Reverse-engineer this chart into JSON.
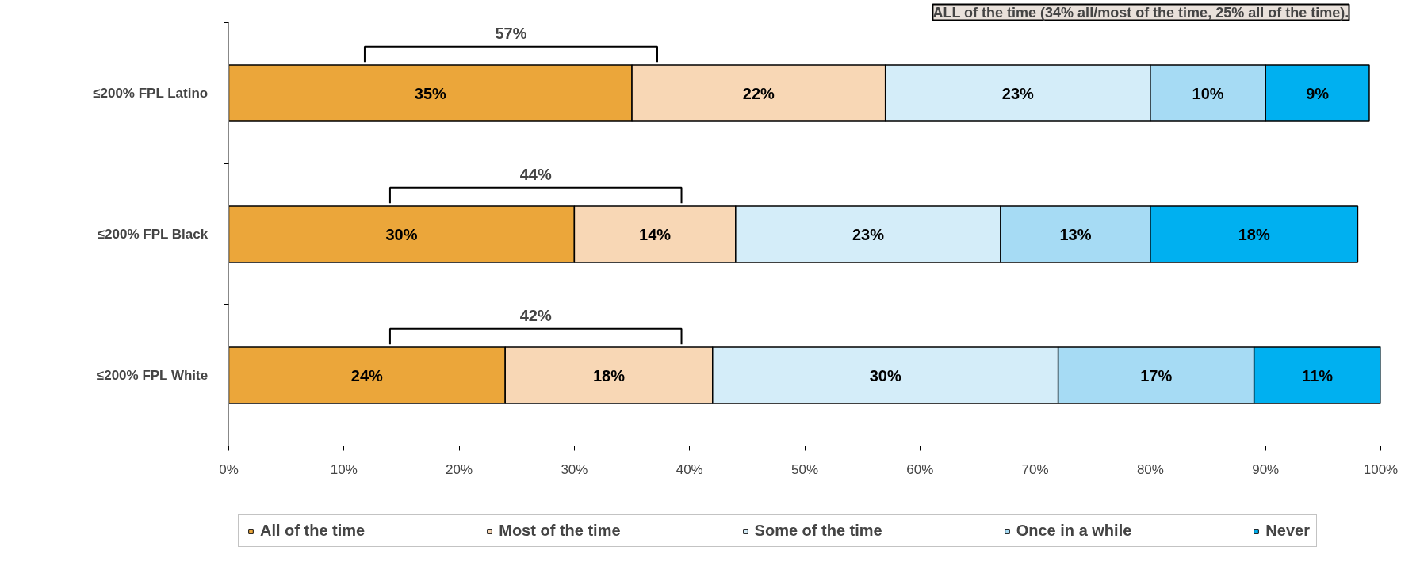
{
  "chart_data": {
    "type": "bar",
    "orientation": "horizontal",
    "stacked": true,
    "categories": [
      "≤200% FPL Latino",
      "≤200% FPL Black",
      "≤200% FPL White"
    ],
    "series": [
      {
        "name": "All of the time",
        "color": "#eba63a",
        "values": [
          35,
          30,
          24
        ],
        "value_labels": [
          "35%",
          "30%",
          "24%"
        ]
      },
      {
        "name": "Most of the time",
        "color": "#f8d7b5",
        "values": [
          22,
          14,
          18
        ],
        "value_labels": [
          "22%",
          "14%",
          "18%"
        ]
      },
      {
        "name": "Some of the time",
        "color": "#d4edf9",
        "values": [
          23,
          23,
          30
        ],
        "value_labels": [
          "23%",
          "23%",
          "30%"
        ]
      },
      {
        "name": "Once in a while",
        "color": "#a6dbf4",
        "values": [
          10,
          13,
          17
        ],
        "value_labels": [
          "10%",
          "13%",
          "17%"
        ]
      },
      {
        "name": "Never",
        "color": "#00b0f0",
        "values": [
          9,
          18,
          11
        ],
        "value_labels": [
          "9%",
          "18%",
          "11%"
        ]
      }
    ],
    "xlim": [
      0,
      100
    ],
    "xticks": [
      {
        "value": 0,
        "label": "0%"
      },
      {
        "value": 10,
        "label": "10%"
      },
      {
        "value": 20,
        "label": "20%"
      },
      {
        "value": 30,
        "label": "30%"
      },
      {
        "value": 40,
        "label": "40%"
      },
      {
        "value": 50,
        "label": "50%"
      },
      {
        "value": 60,
        "label": "60%"
      },
      {
        "value": 70,
        "label": "70%"
      },
      {
        "value": 80,
        "label": "80%"
      },
      {
        "value": 90,
        "label": "90%"
      },
      {
        "value": 100,
        "label": "100%"
      }
    ],
    "grid": false,
    "legend": "bottom",
    "annotations": [
      "57%",
      "44%",
      "42%",
      "ALL of the time (34% all/most of the time, 25% all of the time)."
    ]
  }
}
